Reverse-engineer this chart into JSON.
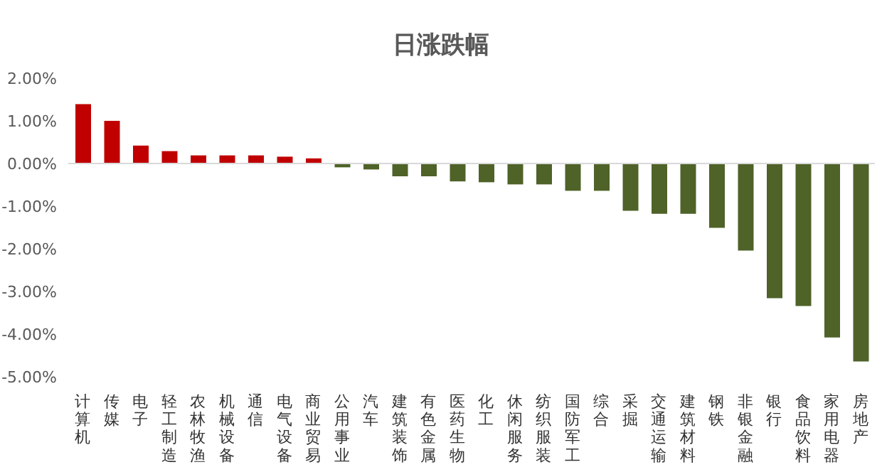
{
  "chart_data": {
    "type": "bar",
    "title": "日涨跌幅",
    "categories": [
      "计算机",
      "传媒",
      "电子",
      "轻工制造",
      "农林牧渔",
      "机械设备",
      "通信",
      "电气设备",
      "商业贸易",
      "公用事业",
      "汽车",
      "建筑装饰",
      "有色金属",
      "医药生物",
      "化工",
      "休闲服务",
      "纺织服装",
      "国防军工",
      "综合",
      "采掘",
      "交通运输",
      "建筑材料",
      "钢铁",
      "非银金融",
      "银行",
      "食品饮料",
      "家用电器",
      "房地产"
    ],
    "values": [
      1.39,
      1.0,
      0.42,
      0.29,
      0.19,
      0.19,
      0.19,
      0.16,
      0.12,
      -0.09,
      -0.14,
      -0.3,
      -0.3,
      -0.42,
      -0.44,
      -0.49,
      -0.49,
      -0.64,
      -0.64,
      -1.11,
      -1.18,
      -1.18,
      -1.51,
      -2.04,
      -3.16,
      -3.34,
      -4.08,
      -4.64
    ],
    "colors": [
      "#c00000",
      "#c00000",
      "#c00000",
      "#c00000",
      "#c00000",
      "#c00000",
      "#c00000",
      "#c00000",
      "#c00000",
      "#4f6228",
      "#4f6228",
      "#4f6228",
      "#4f6228",
      "#4f6228",
      "#4f6228",
      "#4f6228",
      "#4f6228",
      "#4f6228",
      "#4f6228",
      "#4f6228",
      "#4f6228",
      "#4f6228",
      "#4f6228",
      "#4f6228",
      "#4f6228",
      "#4f6228",
      "#4f6228",
      "#4f6228"
    ],
    "ylim": [
      -5,
      2
    ],
    "yticks": [
      {
        "value": 2,
        "label": "2.00%"
      },
      {
        "value": 1,
        "label": "1.00%"
      },
      {
        "value": 0,
        "label": "0.00%"
      },
      {
        "value": -1,
        "label": "-1.00%"
      },
      {
        "value": -2,
        "label": "-2.00%"
      },
      {
        "value": -3,
        "label": "-3.00%"
      },
      {
        "value": -4,
        "label": "-4.00%"
      },
      {
        "value": -5,
        "label": "-5.00%"
      }
    ]
  }
}
